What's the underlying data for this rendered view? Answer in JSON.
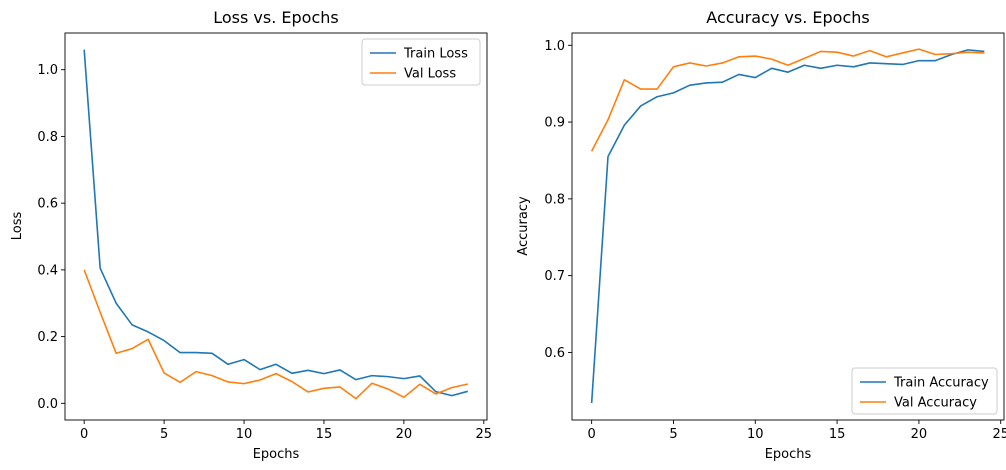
{
  "chart_data": [
    {
      "type": "line",
      "title": "Loss vs. Epochs",
      "xlabel": "Epochs",
      "ylabel": "Loss",
      "xlim": [
        -1.2,
        25.2
      ],
      "ylim": [
        -0.05,
        1.11
      ],
      "xticks": [
        0,
        5,
        10,
        15,
        20,
        25
      ],
      "yticks": [
        0.0,
        0.2,
        0.4,
        0.6,
        0.8,
        1.0
      ],
      "ytick_labels": [
        "0.0",
        "0.2",
        "0.4",
        "0.6",
        "0.8",
        "1.0"
      ],
      "grid": false,
      "legend": "top-right",
      "x": [
        0,
        1,
        2,
        3,
        4,
        5,
        6,
        7,
        8,
        9,
        10,
        11,
        12,
        13,
        14,
        15,
        16,
        17,
        18,
        19,
        20,
        21,
        22,
        23,
        24
      ],
      "series": [
        {
          "name": "Train Loss",
          "color": "#1f77b4",
          "values": [
            1.06,
            0.405,
            0.3,
            0.235,
            0.214,
            0.188,
            0.152,
            0.152,
            0.15,
            0.117,
            0.131,
            0.101,
            0.117,
            0.09,
            0.099,
            0.089,
            0.1,
            0.071,
            0.083,
            0.08,
            0.074,
            0.082,
            0.035,
            0.023,
            0.036
          ]
        },
        {
          "name": "Val Loss",
          "color": "#ff7f0e",
          "values": [
            0.4,
            0.273,
            0.15,
            0.164,
            0.192,
            0.091,
            0.063,
            0.095,
            0.083,
            0.064,
            0.059,
            0.07,
            0.089,
            0.065,
            0.034,
            0.045,
            0.049,
            0.014,
            0.06,
            0.043,
            0.018,
            0.057,
            0.028,
            0.047,
            0.058
          ]
        }
      ]
    },
    {
      "type": "line",
      "title": "Accuracy vs. Epochs",
      "xlabel": "Epochs",
      "ylabel": "Accuracy",
      "xlim": [
        -1.2,
        25.2
      ],
      "ylim": [
        0.512,
        1.016
      ],
      "xticks": [
        0,
        5,
        10,
        15,
        20,
        25
      ],
      "yticks": [
        0.6,
        0.7,
        0.8,
        0.9,
        1.0
      ],
      "ytick_labels": [
        "0.6",
        "0.7",
        "0.8",
        "0.9",
        "1.0"
      ],
      "grid": false,
      "legend": "bottom-right",
      "x": [
        0,
        1,
        2,
        3,
        4,
        5,
        6,
        7,
        8,
        9,
        10,
        11,
        12,
        13,
        14,
        15,
        16,
        17,
        18,
        19,
        20,
        21,
        22,
        23,
        24
      ],
      "series": [
        {
          "name": "Train Accuracy",
          "color": "#1f77b4",
          "values": [
            0.534,
            0.855,
            0.896,
            0.921,
            0.933,
            0.938,
            0.948,
            0.951,
            0.952,
            0.962,
            0.958,
            0.97,
            0.965,
            0.974,
            0.97,
            0.974,
            0.972,
            0.977,
            0.976,
            0.975,
            0.98,
            0.98,
            0.988,
            0.994,
            0.992
          ]
        },
        {
          "name": "Val Accuracy",
          "color": "#ff7f0e",
          "values": [
            0.862,
            0.903,
            0.955,
            0.943,
            0.943,
            0.972,
            0.977,
            0.973,
            0.977,
            0.985,
            0.986,
            0.982,
            0.974,
            0.983,
            0.992,
            0.991,
            0.986,
            0.993,
            0.985,
            0.99,
            0.995,
            0.988,
            0.989,
            0.991,
            0.99
          ]
        }
      ]
    }
  ]
}
